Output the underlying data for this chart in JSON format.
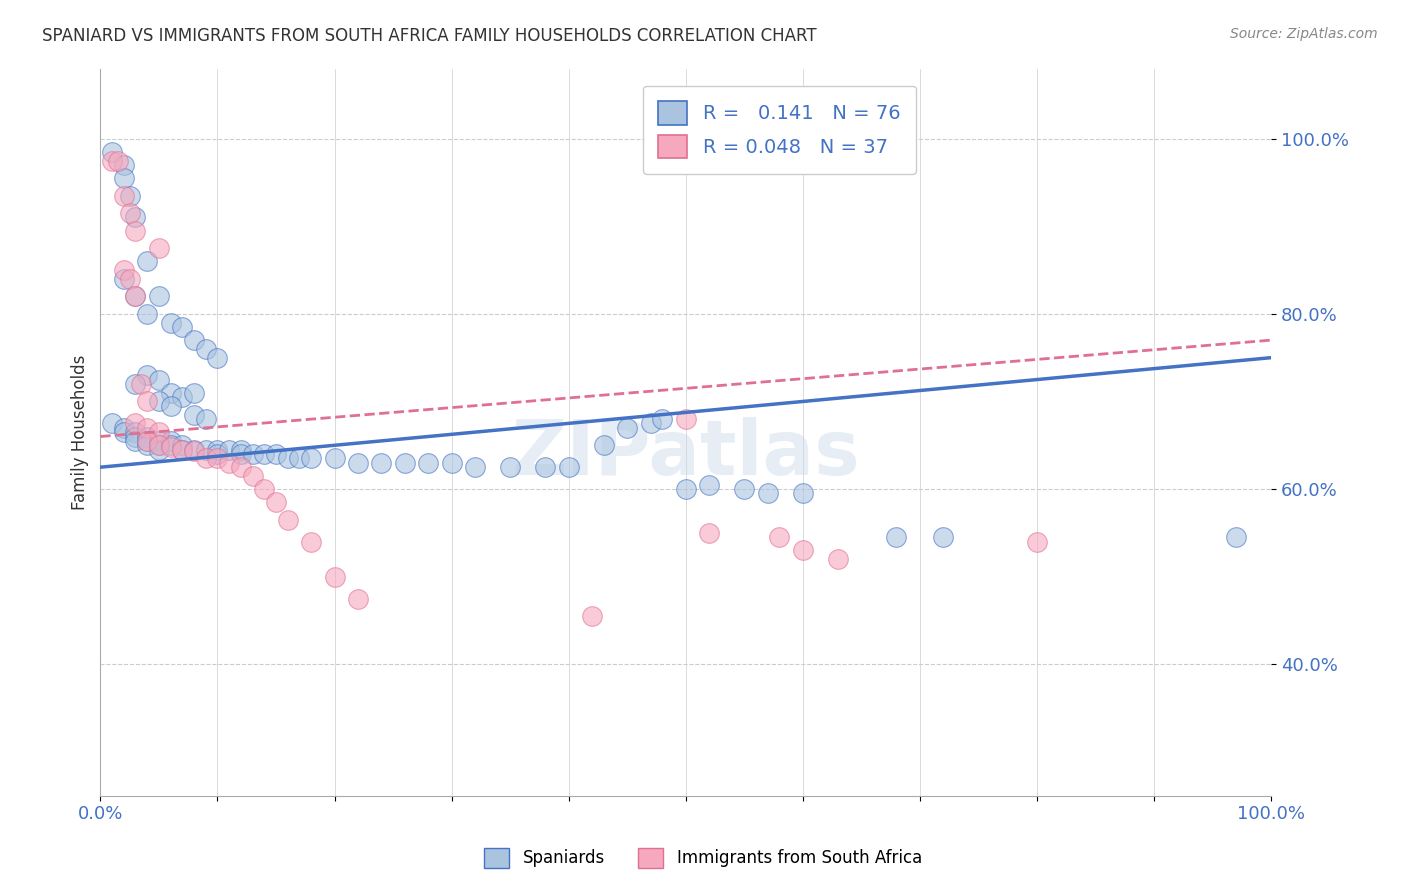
{
  "title": "SPANIARD VS IMMIGRANTS FROM SOUTH AFRICA FAMILY HOUSEHOLDS CORRELATION CHART",
  "source_text": "Source: ZipAtlas.com",
  "ylabel": "Family Households",
  "xlim": [
    0,
    1.0
  ],
  "ylim": [
    0.25,
    1.08
  ],
  "yticks": [
    0.4,
    0.6,
    0.8,
    1.0
  ],
  "ytick_labels": [
    "40.0%",
    "60.0%",
    "80.0%",
    "100.0%"
  ],
  "xtick_labels_left": "0.0%",
  "xtick_labels_right": "100.0%",
  "blue_R": 0.141,
  "blue_N": 76,
  "pink_R": 0.048,
  "pink_N": 37,
  "blue_color": "#aac4e0",
  "pink_color": "#f5a8be",
  "blue_line_color": "#4472c4",
  "pink_line_color": "#e07090",
  "watermark": "ZIPatlas",
  "blue_scatter": [
    [
      0.01,
      0.985
    ],
    [
      0.02,
      0.97
    ],
    [
      0.02,
      0.955
    ],
    [
      0.025,
      0.935
    ],
    [
      0.03,
      0.91
    ],
    [
      0.04,
      0.86
    ],
    [
      0.02,
      0.84
    ],
    [
      0.03,
      0.82
    ],
    [
      0.04,
      0.8
    ],
    [
      0.05,
      0.82
    ],
    [
      0.06,
      0.79
    ],
    [
      0.07,
      0.785
    ],
    [
      0.08,
      0.77
    ],
    [
      0.09,
      0.76
    ],
    [
      0.1,
      0.75
    ],
    [
      0.04,
      0.73
    ],
    [
      0.05,
      0.725
    ],
    [
      0.03,
      0.72
    ],
    [
      0.06,
      0.71
    ],
    [
      0.07,
      0.705
    ],
    [
      0.08,
      0.71
    ],
    [
      0.05,
      0.7
    ],
    [
      0.06,
      0.695
    ],
    [
      0.08,
      0.685
    ],
    [
      0.09,
      0.68
    ],
    [
      0.01,
      0.675
    ],
    [
      0.02,
      0.67
    ],
    [
      0.02,
      0.665
    ],
    [
      0.03,
      0.665
    ],
    [
      0.03,
      0.66
    ],
    [
      0.03,
      0.655
    ],
    [
      0.04,
      0.66
    ],
    [
      0.04,
      0.655
    ],
    [
      0.04,
      0.65
    ],
    [
      0.05,
      0.655
    ],
    [
      0.05,
      0.65
    ],
    [
      0.05,
      0.645
    ],
    [
      0.06,
      0.655
    ],
    [
      0.06,
      0.65
    ],
    [
      0.07,
      0.65
    ],
    [
      0.07,
      0.645
    ],
    [
      0.08,
      0.645
    ],
    [
      0.09,
      0.645
    ],
    [
      0.1,
      0.645
    ],
    [
      0.1,
      0.64
    ],
    [
      0.11,
      0.645
    ],
    [
      0.12,
      0.645
    ],
    [
      0.12,
      0.64
    ],
    [
      0.13,
      0.64
    ],
    [
      0.14,
      0.64
    ],
    [
      0.15,
      0.64
    ],
    [
      0.16,
      0.635
    ],
    [
      0.17,
      0.635
    ],
    [
      0.18,
      0.635
    ],
    [
      0.2,
      0.635
    ],
    [
      0.22,
      0.63
    ],
    [
      0.24,
      0.63
    ],
    [
      0.26,
      0.63
    ],
    [
      0.28,
      0.63
    ],
    [
      0.3,
      0.63
    ],
    [
      0.32,
      0.625
    ],
    [
      0.35,
      0.625
    ],
    [
      0.38,
      0.625
    ],
    [
      0.4,
      0.625
    ],
    [
      0.43,
      0.65
    ],
    [
      0.45,
      0.67
    ],
    [
      0.47,
      0.675
    ],
    [
      0.48,
      0.68
    ],
    [
      0.5,
      0.6
    ],
    [
      0.52,
      0.605
    ],
    [
      0.55,
      0.6
    ],
    [
      0.57,
      0.595
    ],
    [
      0.6,
      0.595
    ],
    [
      0.68,
      0.545
    ],
    [
      0.72,
      0.545
    ],
    [
      0.97,
      0.545
    ]
  ],
  "pink_scatter": [
    [
      0.01,
      0.975
    ],
    [
      0.015,
      0.975
    ],
    [
      0.02,
      0.935
    ],
    [
      0.025,
      0.915
    ],
    [
      0.03,
      0.895
    ],
    [
      0.05,
      0.875
    ],
    [
      0.02,
      0.85
    ],
    [
      0.025,
      0.84
    ],
    [
      0.03,
      0.82
    ],
    [
      0.035,
      0.72
    ],
    [
      0.04,
      0.7
    ],
    [
      0.03,
      0.675
    ],
    [
      0.04,
      0.67
    ],
    [
      0.05,
      0.665
    ],
    [
      0.04,
      0.655
    ],
    [
      0.05,
      0.65
    ],
    [
      0.06,
      0.648
    ],
    [
      0.07,
      0.645
    ],
    [
      0.08,
      0.643
    ],
    [
      0.09,
      0.635
    ],
    [
      0.1,
      0.635
    ],
    [
      0.11,
      0.63
    ],
    [
      0.12,
      0.625
    ],
    [
      0.13,
      0.615
    ],
    [
      0.14,
      0.6
    ],
    [
      0.15,
      0.585
    ],
    [
      0.16,
      0.565
    ],
    [
      0.18,
      0.54
    ],
    [
      0.2,
      0.5
    ],
    [
      0.22,
      0.475
    ],
    [
      0.42,
      0.455
    ],
    [
      0.5,
      0.68
    ],
    [
      0.52,
      0.55
    ],
    [
      0.58,
      0.545
    ],
    [
      0.6,
      0.53
    ],
    [
      0.63,
      0.52
    ],
    [
      0.8,
      0.54
    ]
  ]
}
